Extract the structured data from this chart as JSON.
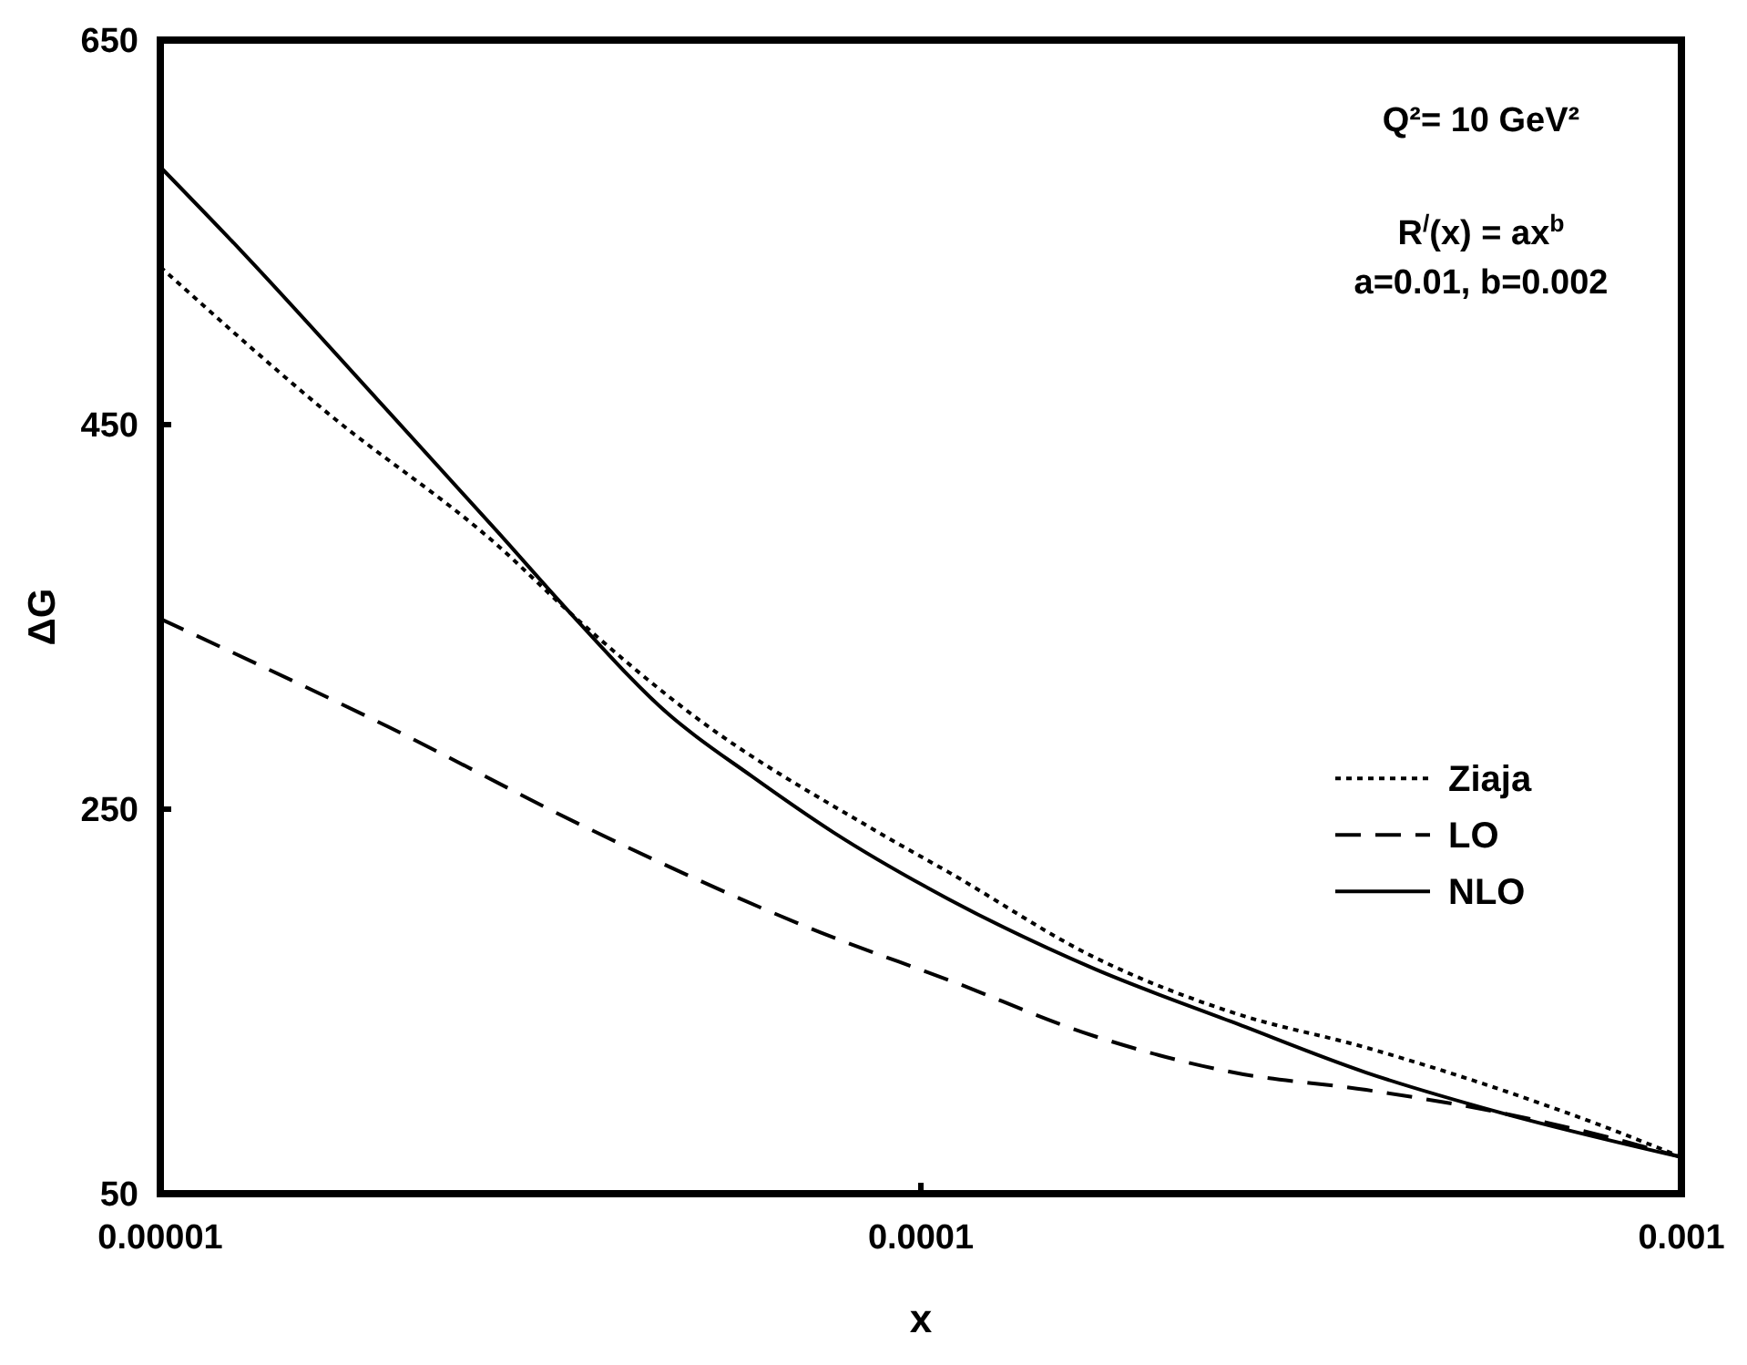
{
  "chart_data": {
    "type": "line",
    "xlabel": "x",
    "ylabel": "ΔG",
    "log": "x",
    "xlim": [
      1e-05,
      0.001
    ],
    "xticks": [
      {
        "value": 1e-05,
        "label": "0.00001"
      },
      {
        "value": 0.0001,
        "label": "0.0001"
      },
      {
        "value": 0.001,
        "label": "0.001"
      }
    ],
    "ylim": [
      50,
      650
    ],
    "yticks": [
      50,
      250,
      450,
      650
    ],
    "grid": false,
    "legend": "right",
    "annotations": [
      "Q²= 10 GeV²",
      "R$^{/}$(x) = ax$^{b}$",
      "a=0.01, b=0.002"
    ],
    "series": [
      {
        "name": "Ziaja",
        "color": "#000000",
        "line_style": "dotted",
        "x": [
          1e-05,
          1.66e-05,
          2.78e-05,
          3.46e-05,
          5.01e-05,
          8.7e-05,
          0.000109,
          0.000169,
          0.000258,
          0.000385,
          0.00058,
          0.00079,
          0.001
        ],
        "values": [
          532,
          456,
          387,
          352,
          299,
          239,
          217,
          173,
          144,
          126,
          104,
          85,
          69
        ]
      },
      {
        "name": "LO",
        "color": "#000000",
        "line_style": "dashed",
        "x": [
          1e-05,
          1.99e-05,
          3.74e-05,
          7.37e-05,
          0.000109,
          0.000169,
          0.000258,
          0.000385,
          0.00058,
          0.00079,
          0.001
        ],
        "values": [
          349,
          293,
          238,
          186,
          161,
          132,
          113,
          104,
          92,
          80,
          69
        ]
      },
      {
        "name": "NLO",
        "color": "#000000",
        "line_style": "solid",
        "x": [
          1e-05,
          1.28e-05,
          1.93e-05,
          2.78e-05,
          3.46e-05,
          4.67e-05,
          6e-05,
          7.67e-05,
          0.000109,
          0.000169,
          0.000258,
          0.000385,
          0.00058,
          0.001
        ],
        "values": [
          584,
          540,
          463,
          394,
          352,
          299,
          267,
          238,
          203,
          167,
          139,
          113,
          92,
          69
        ]
      }
    ]
  }
}
